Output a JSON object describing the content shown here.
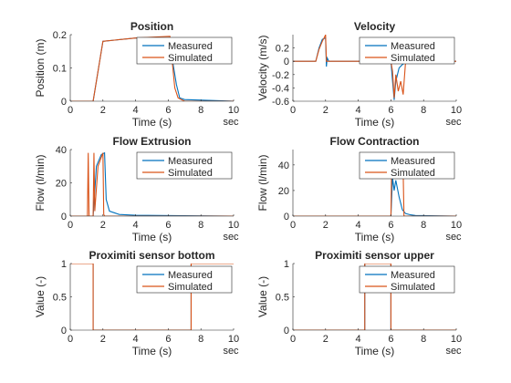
{
  "figure": {
    "background": "#ffffff"
  },
  "colors": {
    "measured": "#0072BD",
    "simulated": "#D95319",
    "axis": "#262626"
  },
  "chart_data": [
    {
      "type": "line",
      "title": "Position",
      "xlabel": "Time (s)",
      "ylabel": "Position (m)",
      "xunit": "sec",
      "xlim": [
        0,
        10
      ],
      "ylim": [
        0,
        0.2
      ],
      "xticks": [
        0,
        2,
        4,
        6,
        8,
        10
      ],
      "yticks": [
        0,
        0.1,
        0.2
      ],
      "yticklabels": [
        "0",
        "0.1",
        "0.2"
      ],
      "legend": "top-right",
      "series": [
        {
          "name": "Measured",
          "color": "#0072BD",
          "x": [
            0,
            1.4,
            2.0,
            4.0,
            6.0,
            6.2,
            6.5,
            6.7,
            7.0,
            10
          ],
          "y": [
            0,
            0,
            0.18,
            0.19,
            0.19,
            0.14,
            0.05,
            0.01,
            0.005,
            0
          ]
        },
        {
          "name": "Simulated",
          "color": "#D95319",
          "x": [
            0,
            1.4,
            2.0,
            4.0,
            6.1,
            6.2,
            6.4,
            6.6,
            7.0,
            10
          ],
          "y": [
            0,
            0,
            0.18,
            0.19,
            0.195,
            0.14,
            0.04,
            0.01,
            0,
            0
          ]
        }
      ]
    },
    {
      "type": "line",
      "title": "Velocity",
      "xlabel": "Time (s)",
      "ylabel": "Velocity (m/s)",
      "xunit": "sec",
      "xlim": [
        0,
        10
      ],
      "ylim": [
        -0.6,
        0.4
      ],
      "xticks": [
        0,
        2,
        4,
        6,
        8,
        10
      ],
      "yticks": [
        -0.6,
        -0.4,
        -0.2,
        0,
        0.2
      ],
      "yticklabels": [
        "-0.6",
        "-0.4",
        "-0.2",
        "0",
        "0.2"
      ],
      "legend": "top-right",
      "series": [
        {
          "name": "Measured",
          "color": "#0072BD",
          "x": [
            0,
            1.4,
            1.6,
            1.8,
            2.0,
            2.05,
            2.1,
            2.2,
            6.0,
            6.1,
            6.2,
            6.3,
            6.5,
            6.7,
            7.0,
            10
          ],
          "y": [
            0,
            0,
            0.2,
            0.33,
            0.35,
            -0.08,
            0.05,
            0,
            0,
            -0.3,
            -0.58,
            -0.3,
            -0.1,
            -0.05,
            0,
            0
          ]
        },
        {
          "name": "Simulated",
          "color": "#D95319",
          "x": [
            0,
            1.4,
            1.6,
            1.8,
            1.95,
            2.0,
            2.05,
            2.1,
            6.0,
            6.1,
            6.2,
            6.3,
            6.45,
            6.6,
            6.75,
            6.9,
            10
          ],
          "y": [
            0,
            0,
            0.18,
            0.3,
            0.37,
            0.4,
            0,
            0,
            0,
            -0.15,
            -0.55,
            -0.2,
            -0.45,
            -0.3,
            -0.5,
            0,
            0
          ]
        }
      ]
    },
    {
      "type": "line",
      "title": "Flow Extrusion",
      "xlabel": "Time (s)",
      "ylabel": "Flow (l/min)",
      "xunit": "sec",
      "xlim": [
        0,
        10
      ],
      "ylim": [
        0,
        40
      ],
      "xticks": [
        0,
        2,
        4,
        6,
        8,
        10
      ],
      "yticks": [
        0,
        20,
        40
      ],
      "yticklabels": [
        "0",
        "20",
        "40"
      ],
      "legend": "top-right",
      "series": [
        {
          "name": "Measured",
          "color": "#0072BD",
          "x": [
            0,
            1.4,
            1.6,
            1.9,
            2.1,
            2.2,
            2.4,
            3.0,
            4.0,
            10
          ],
          "y": [
            0,
            0,
            30,
            37,
            38,
            10,
            3,
            1,
            0.5,
            0
          ]
        },
        {
          "name": "Simulated",
          "color": "#D95319",
          "x": [
            0,
            1.05,
            1.1,
            1.15,
            1.4,
            1.45,
            1.5,
            1.7,
            2.0,
            2.05,
            2.1,
            10
          ],
          "y": [
            0,
            0,
            38,
            0,
            0,
            38,
            3,
            30,
            38,
            1,
            0,
            0
          ]
        }
      ]
    },
    {
      "type": "line",
      "title": "Flow Contraction",
      "xlabel": "Time (s)",
      "ylabel": "Flow (l/min)",
      "xunit": "sec",
      "xlim": [
        0,
        10
      ],
      "ylim": [
        0,
        52
      ],
      "xticks": [
        0,
        2,
        4,
        6,
        8,
        10
      ],
      "yticks": [
        0,
        20,
        40
      ],
      "yticklabels": [
        "0",
        "20",
        "40"
      ],
      "legend": "top-right",
      "series": [
        {
          "name": "Measured",
          "color": "#0072BD",
          "x": [
            0,
            6.0,
            6.1,
            6.2,
            6.3,
            6.5,
            6.7,
            6.9,
            7.2,
            7.5,
            10
          ],
          "y": [
            0,
            0,
            30,
            20,
            28,
            15,
            5,
            2,
            1,
            0.5,
            0
          ]
        },
        {
          "name": "Simulated",
          "color": "#D95319",
          "x": [
            0,
            6.0,
            6.05,
            6.1,
            6.2,
            6.4,
            6.6,
            6.75,
            6.8,
            10
          ],
          "y": [
            0,
            0,
            45,
            30,
            40,
            40,
            35,
            35,
            0,
            0
          ]
        }
      ]
    },
    {
      "type": "line",
      "title": "Proximiti sensor bottom",
      "xlabel": "Time (s)",
      "ylabel": "Value (-)",
      "xunit": "sec",
      "xlim": [
        0,
        10
      ],
      "ylim": [
        0,
        1
      ],
      "xticks": [
        0,
        2,
        4,
        6,
        8,
        10
      ],
      "yticks": [
        0,
        0.5,
        1
      ],
      "yticklabels": [
        "0",
        "0.5",
        "1"
      ],
      "legend": "top-right",
      "series": [
        {
          "name": "Measured",
          "color": "#0072BD",
          "x": [
            0,
            1.4,
            1.4,
            7.4,
            7.4,
            10
          ],
          "y": [
            1,
            1,
            0,
            0,
            1,
            1
          ]
        },
        {
          "name": "Simulated",
          "color": "#D95319",
          "x": [
            0,
            1.4,
            1.4,
            7.4,
            7.4,
            10
          ],
          "y": [
            1,
            1,
            0,
            0,
            1,
            1
          ]
        }
      ]
    },
    {
      "type": "line",
      "title": "Proximiti sensor upper",
      "xlabel": "Time (s)",
      "ylabel": "Value (-)",
      "xunit": "sec",
      "xlim": [
        0,
        10
      ],
      "ylim": [
        0,
        1
      ],
      "xticks": [
        0,
        2,
        4,
        6,
        8,
        10
      ],
      "yticks": [
        0,
        0.5,
        1
      ],
      "yticklabels": [
        "0",
        "0.5",
        "1"
      ],
      "legend": "top-right",
      "series": [
        {
          "name": "Measured",
          "color": "#0072BD",
          "x": [
            0,
            4.4,
            4.4,
            6.0,
            6.0,
            10
          ],
          "y": [
            0,
            0,
            1,
            1,
            0,
            0
          ]
        },
        {
          "name": "Simulated",
          "color": "#D95319",
          "x": [
            0,
            4.4,
            4.4,
            6.0,
            6.0,
            10
          ],
          "y": [
            0,
            0,
            1,
            1,
            0,
            0
          ]
        }
      ]
    }
  ]
}
